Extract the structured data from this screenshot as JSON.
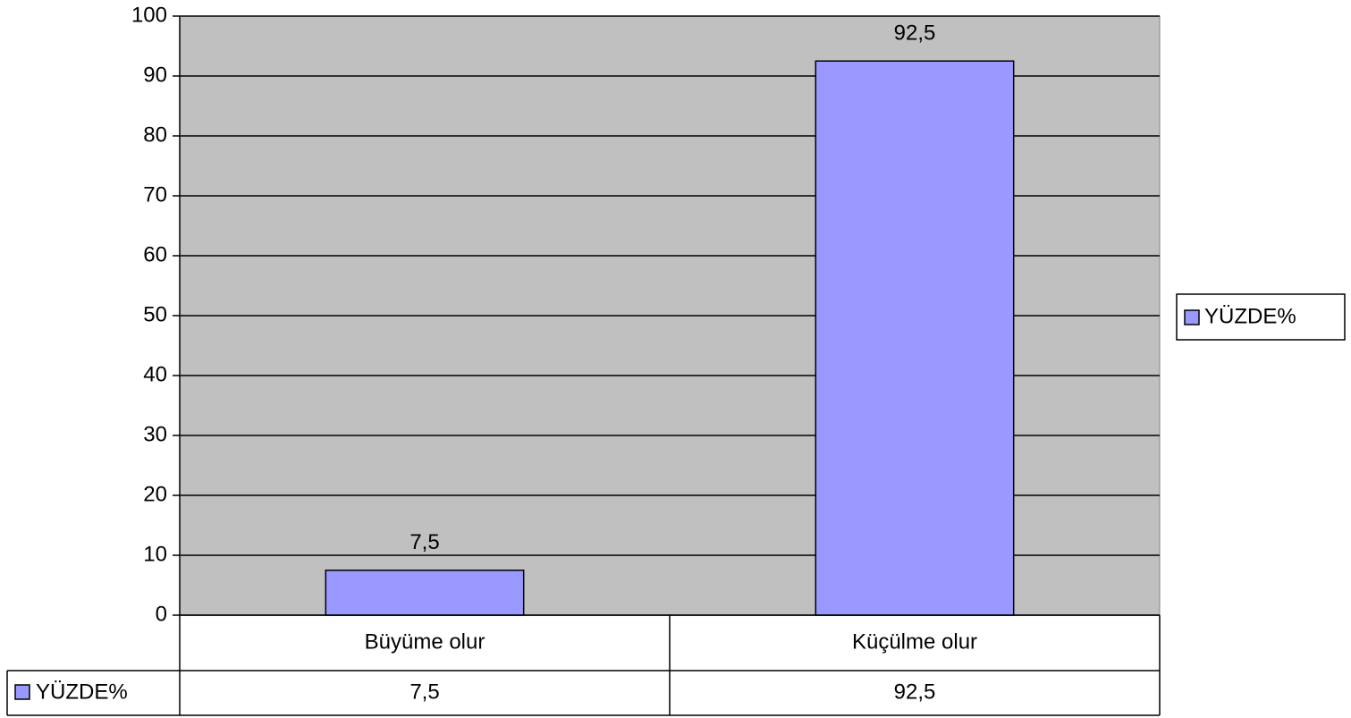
{
  "chart_data": {
    "type": "bar",
    "categories": [
      "Büyüme olur",
      "Küçülme olur"
    ],
    "series": [
      {
        "name": "YÜZDE%",
        "color": "#9999ff",
        "values": [
          7.5,
          92.5
        ],
        "value_labels": [
          "7,5",
          "92,5"
        ]
      }
    ],
    "ylim": [
      0,
      100
    ],
    "yticks": [
      0,
      10,
      20,
      30,
      40,
      50,
      60,
      70,
      80,
      90,
      100
    ],
    "grid": true,
    "plot_background": "#c0c0c0",
    "legend": "right",
    "data_table": true
  }
}
